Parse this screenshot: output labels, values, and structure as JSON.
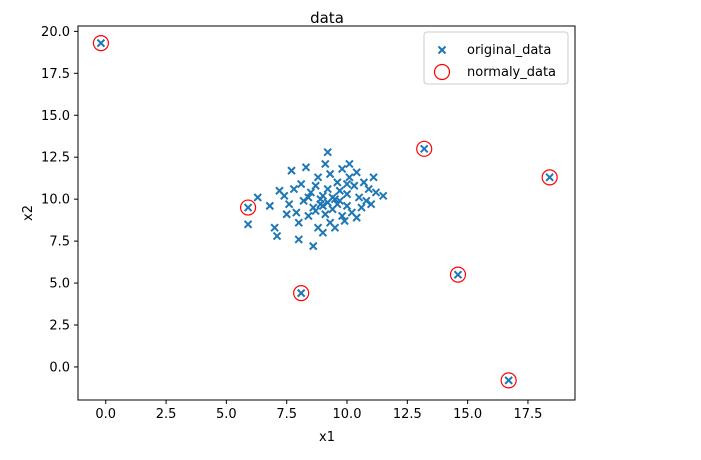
{
  "chart_data": {
    "type": "scatter",
    "title": "data",
    "xlabel": "x1",
    "ylabel": "x2",
    "xlim": [
      -1.15,
      19.45
    ],
    "ylim": [
      -1.97,
      20.32
    ],
    "xticks": [
      0.0,
      2.5,
      5.0,
      7.5,
      10.0,
      12.5,
      15.0,
      17.5
    ],
    "xtick_labels": [
      "0.0",
      "2.5",
      "5.0",
      "7.5",
      "10.0",
      "12.5",
      "15.0",
      "17.5"
    ],
    "yticks": [
      0.0,
      2.5,
      5.0,
      7.5,
      10.0,
      12.5,
      15.0,
      17.5,
      20.0
    ],
    "ytick_labels": [
      "0.0",
      "2.5",
      "5.0",
      "7.5",
      "10.0",
      "12.5",
      "15.0",
      "17.5",
      "20.0"
    ],
    "grid": false,
    "legend_position": "top-right",
    "colors": {
      "original": "#1f77b4",
      "anomaly": "#ff0000"
    },
    "series": [
      {
        "name": "original_data",
        "marker": "x",
        "points": [
          [
            -0.2,
            19.3
          ],
          [
            5.9,
            9.5
          ],
          [
            5.9,
            8.5
          ],
          [
            6.3,
            10.1
          ],
          [
            6.8,
            9.6
          ],
          [
            7.0,
            8.3
          ],
          [
            7.1,
            7.8
          ],
          [
            7.2,
            10.5
          ],
          [
            7.4,
            10.2
          ],
          [
            7.5,
            9.1
          ],
          [
            7.6,
            9.7
          ],
          [
            7.7,
            11.7
          ],
          [
            7.8,
            10.6
          ],
          [
            7.9,
            9.2
          ],
          [
            8.0,
            7.6
          ],
          [
            8.0,
            8.6
          ],
          [
            8.1,
            4.4
          ],
          [
            8.1,
            10.9
          ],
          [
            8.2,
            9.9
          ],
          [
            8.3,
            11.9
          ],
          [
            8.4,
            9.0
          ],
          [
            8.5,
            10.4
          ],
          [
            8.6,
            7.2
          ],
          [
            8.6,
            9.5
          ],
          [
            8.7,
            10.8
          ],
          [
            8.8,
            8.3
          ],
          [
            8.8,
            11.3
          ],
          [
            8.9,
            9.7
          ],
          [
            9.0,
            8.0
          ],
          [
            9.0,
            10.2
          ],
          [
            9.1,
            12.1
          ],
          [
            9.1,
            9.1
          ],
          [
            9.2,
            12.8
          ],
          [
            9.2,
            10.6
          ],
          [
            9.3,
            8.6
          ],
          [
            9.3,
            11.5
          ],
          [
            9.4,
            9.4
          ],
          [
            9.5,
            10.0
          ],
          [
            9.5,
            8.3
          ],
          [
            9.6,
            11.0
          ],
          [
            9.6,
            9.7
          ],
          [
            9.7,
            10.5
          ],
          [
            9.8,
            9.0
          ],
          [
            9.8,
            11.8
          ],
          [
            9.9,
            8.7
          ],
          [
            10.0,
            10.3
          ],
          [
            10.0,
            9.6
          ],
          [
            10.1,
            11.3
          ],
          [
            10.1,
            12.1
          ],
          [
            10.2,
            9.2
          ],
          [
            10.3,
            10.8
          ],
          [
            10.4,
            8.9
          ],
          [
            10.4,
            11.6
          ],
          [
            10.5,
            10.1
          ],
          [
            10.6,
            9.5
          ],
          [
            10.7,
            11.0
          ],
          [
            10.8,
            9.9
          ],
          [
            10.9,
            10.6
          ],
          [
            11.0,
            9.7
          ],
          [
            11.1,
            11.3
          ],
          [
            11.2,
            10.4
          ],
          [
            11.5,
            10.2
          ],
          [
            8.4,
            10.1
          ],
          [
            8.9,
            10.0
          ],
          [
            9.0,
            9.6
          ],
          [
            9.4,
            10.1
          ],
          [
            9.7,
            9.9
          ],
          [
            10.0,
            10.9
          ],
          [
            9.2,
            9.8
          ],
          [
            8.7,
            9.3
          ],
          [
            13.2,
            13.0
          ],
          [
            14.6,
            5.5
          ],
          [
            16.7,
            -0.8
          ],
          [
            18.4,
            11.3
          ]
        ]
      },
      {
        "name": "normaly_data",
        "marker": "circle-open",
        "points": [
          [
            -0.2,
            19.3
          ],
          [
            5.9,
            9.5
          ],
          [
            8.1,
            4.4
          ],
          [
            13.2,
            13.0
          ],
          [
            14.6,
            5.5
          ],
          [
            16.7,
            -0.8
          ],
          [
            18.4,
            11.3
          ]
        ]
      }
    ]
  }
}
